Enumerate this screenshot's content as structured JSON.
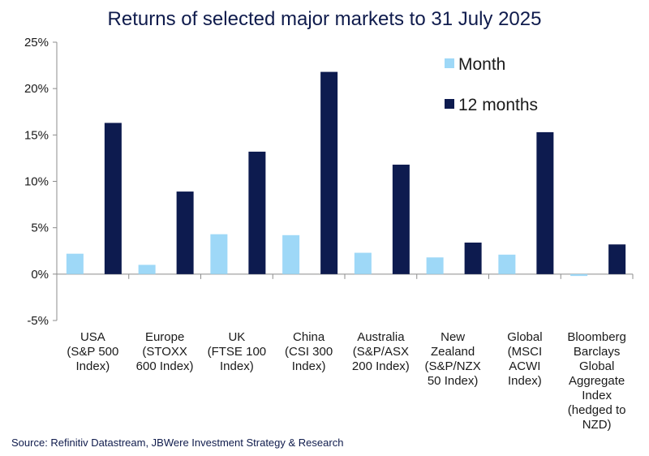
{
  "title": "Returns of selected major markets to 31 July 2025",
  "source": "Source: Refinitiv Datastream, JBWere Investment Strategy & Research",
  "chart_data": {
    "type": "bar",
    "title": "Returns of selected major markets to 31 July 2025",
    "xlabel": "",
    "ylabel": "",
    "ylim": [
      -5,
      25
    ],
    "yticks": [
      -5,
      0,
      5,
      10,
      15,
      20,
      25
    ],
    "ytick_labels": [
      "-5%",
      "0%",
      "5%",
      "10%",
      "15%",
      "20%",
      "25%"
    ],
    "legend_position": "top-right",
    "grid": false,
    "categories": [
      [
        "USA",
        "(S&P 500",
        "Index)"
      ],
      [
        "Europe",
        "(STOXX",
        "600 Index)"
      ],
      [
        "UK",
        "(FTSE 100",
        "Index)"
      ],
      [
        "China",
        "(CSI 300",
        "Index)"
      ],
      [
        "Australia",
        "(S&P/ASX",
        "200 Index)"
      ],
      [
        "New",
        "Zealand",
        "(S&P/NZX",
        "50 Index)"
      ],
      [
        "Global",
        "(MSCI",
        "ACWI",
        "Index)"
      ],
      [
        "Bloomberg",
        "Barclays",
        "Global",
        "Aggregate",
        "Index",
        "(hedged to",
        "NZD)"
      ]
    ],
    "series": [
      {
        "name": "Month",
        "color": "#9ed8f7",
        "values": [
          2.2,
          1.0,
          4.3,
          4.2,
          2.3,
          1.8,
          2.1,
          -0.2
        ]
      },
      {
        "name": "12 months",
        "color": "#0d1b4f",
        "values": [
          16.3,
          8.9,
          13.2,
          21.8,
          11.8,
          3.4,
          15.3,
          3.2
        ]
      }
    ]
  }
}
